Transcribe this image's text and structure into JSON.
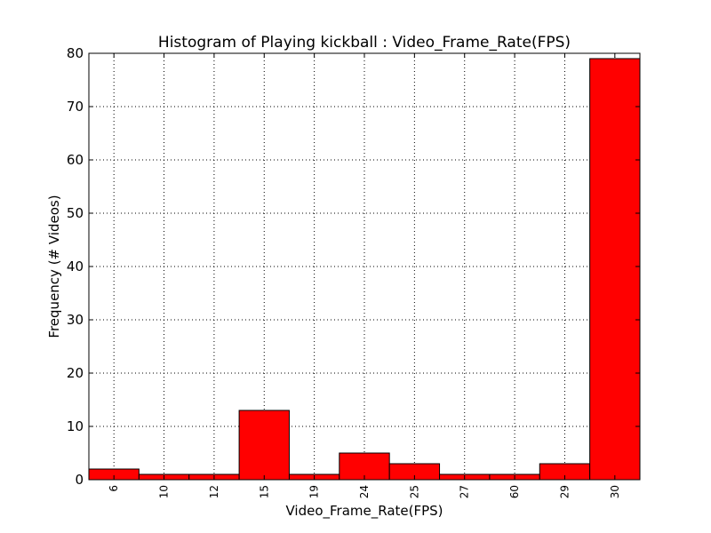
{
  "chart_data": {
    "type": "bar",
    "title": "Histogram of Playing kickball : Video_Frame_Rate(FPS)",
    "xlabel": "Video_Frame_Rate(FPS)",
    "ylabel": "Frequency (# Videos)",
    "categories": [
      "6",
      "10",
      "12",
      "15",
      "19",
      "24",
      "25",
      "27",
      "60",
      "29",
      "30"
    ],
    "values": [
      2,
      1,
      1,
      13,
      1,
      5,
      3,
      1,
      1,
      3,
      79
    ],
    "ylim": [
      0,
      80
    ],
    "yticks": [
      0,
      10,
      20,
      30,
      40,
      50,
      60,
      70,
      80
    ],
    "grid": true,
    "bar_color": "#ff0000"
  }
}
